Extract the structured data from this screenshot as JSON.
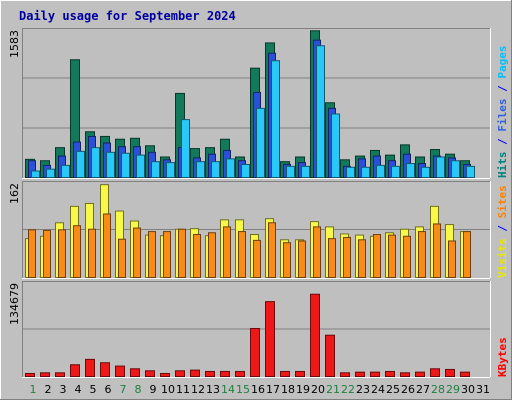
{
  "chart_data": {
    "type": "bar",
    "title": "Daily usage for September 2024",
    "days": [
      "1",
      "2",
      "3",
      "4",
      "5",
      "6",
      "7",
      "8",
      "9",
      "10",
      "11",
      "12",
      "13",
      "14",
      "15",
      "16",
      "17",
      "18",
      "19",
      "20",
      "21",
      "22",
      "23",
      "24",
      "25",
      "26",
      "27",
      "28",
      "29",
      "30",
      "31"
    ],
    "weekend_days": [
      "1",
      "7",
      "8",
      "14",
      "15",
      "21",
      "22",
      "28",
      "29"
    ],
    "panels": [
      {
        "id": "hits",
        "max_label": "1583",
        "ymax": 1583,
        "right_labels": [
          {
            "text": "Hits",
            "color": "#008080"
          },
          {
            "text": " / ",
            "color": "#0000ff"
          },
          {
            "text": "Files",
            "color": "#3060e0"
          },
          {
            "text": " / ",
            "color": "#0000ff"
          },
          {
            "text": "Pages",
            "color": "#00c0ff"
          }
        ],
        "series": [
          {
            "name": "Hits",
            "color": "#127a5a",
            "values": [
              205,
              190,
              330,
              1270,
              500,
              450,
              420,
              430,
              350,
              230,
              910,
              320,
              330,
              420,
              230,
              1180,
              1450,
              180,
              230,
              1580,
              810,
              200,
              240,
              300,
              250,
              360,
              230,
              310,
              260,
              190,
              0
            ]
          },
          {
            "name": "Files",
            "color": "#2a4fd8",
            "values": [
              190,
              140,
              240,
              390,
              450,
              380,
              340,
              340,
              280,
              200,
              330,
              220,
              260,
              300,
              190,
              920,
              1340,
              150,
              170,
              1480,
              750,
              130,
              210,
              240,
              190,
              260,
              160,
              240,
              220,
              150,
              0
            ]
          },
          {
            "name": "Pages",
            "color": "#28c8f8",
            "values": [
              80,
              100,
              140,
              290,
              330,
              280,
              270,
              250,
              180,
              170,
              630,
              180,
              180,
              210,
              150,
              750,
              1260,
              130,
              130,
              1420,
              690,
              120,
              120,
              140,
              130,
              160,
              120,
              230,
              190,
              130,
              0
            ]
          }
        ]
      },
      {
        "id": "visits",
        "max_label": "162",
        "ymax": 162,
        "right_labels": [
          {
            "text": "Visits",
            "color": "#e8e800"
          },
          {
            "text": " / ",
            "color": "#0000ff"
          },
          {
            "text": "Sites",
            "color": "#ff8000"
          }
        ],
        "series": [
          {
            "name": "Visits",
            "color": "#f8f848",
            "values": [
              68,
              72,
              95,
              123,
              128,
              160,
              115,
              98,
              74,
              73,
              84,
              85,
              73,
              100,
              100,
              75,
              102,
              66,
              66,
              97,
              88,
              76,
              74,
              72,
              78,
              84,
              88,
              123,
              92,
              80,
              0
            ]
          },
          {
            "name": "Sites",
            "color": "#f88c18",
            "values": [
              83,
              82,
              83,
              90,
              84,
              110,
              67,
              86,
              80,
              80,
              84,
              75,
              78,
              88,
              80,
              65,
              95,
              61,
              64,
              88,
              68,
              70,
              66,
              75,
              74,
              72,
              80,
              93,
              64,
              80,
              0
            ]
          }
        ]
      },
      {
        "id": "kbytes",
        "max_label": "134679",
        "ymax": 140000,
        "right_labels": [
          {
            "text": "KBytes",
            "color": "#ff0000"
          }
        ],
        "series": [
          {
            "name": "KBytes",
            "color": "#ee1818",
            "values": [
              6000,
              7000,
              7000,
              19000,
              27000,
              22000,
              17000,
              13000,
              10000,
              6000,
              10000,
              11000,
              9000,
              9000,
              9000,
              73000,
              113000,
              9000,
              9000,
              124000,
              63000,
              7000,
              8000,
              8000,
              9000,
              7000,
              8000,
              13000,
              12000,
              8000,
              0
            ]
          }
        ]
      }
    ]
  }
}
